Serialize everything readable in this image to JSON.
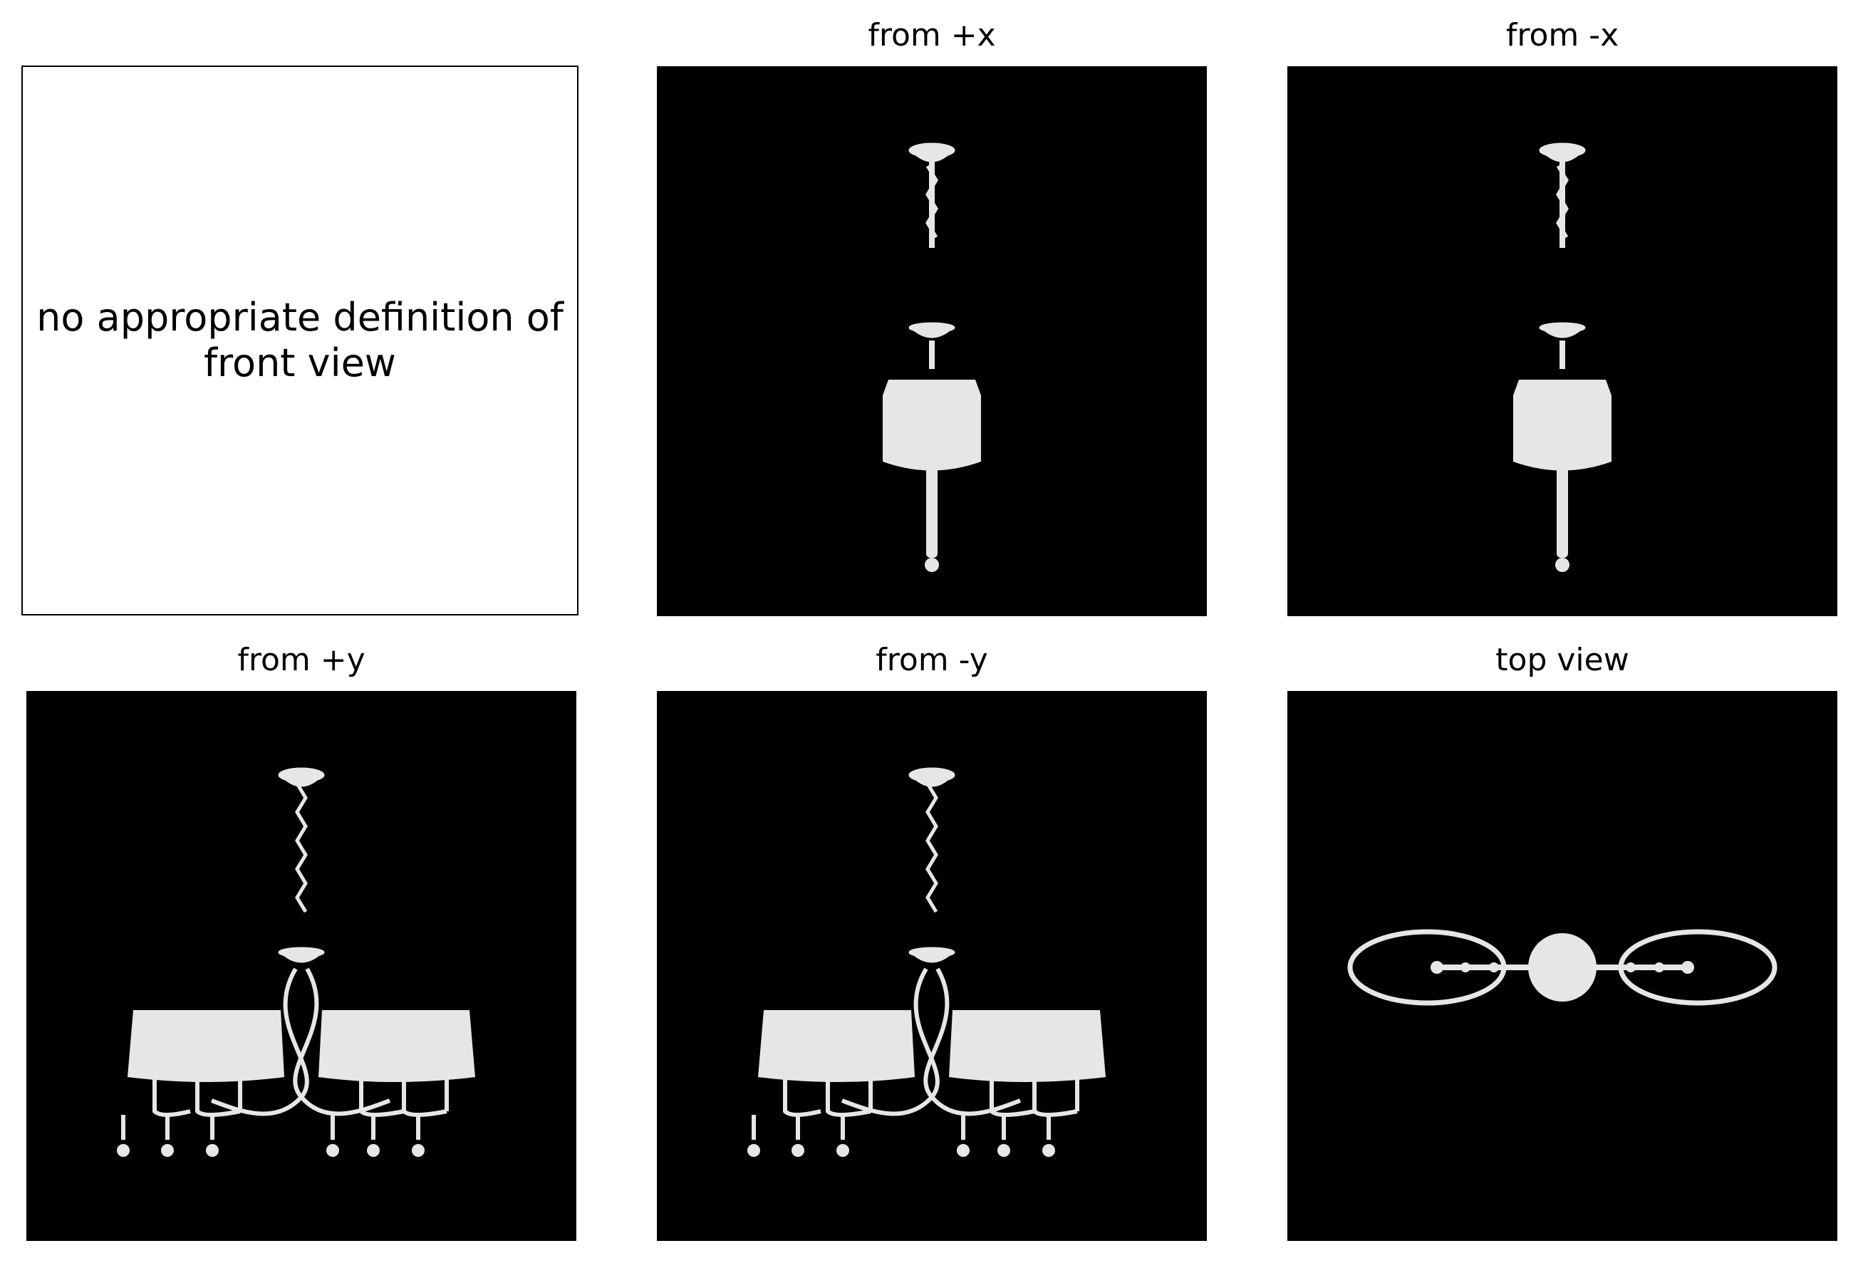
{
  "note": {
    "text": "no appropriate definition of front view"
  },
  "panels": {
    "plus_x": {
      "title": "from +x"
    },
    "minus_x": {
      "title": "from -x"
    },
    "plus_y": {
      "title": "from +y"
    },
    "minus_y": {
      "title": "from -y"
    },
    "top": {
      "title": "top view"
    }
  },
  "colors": {
    "background": "#000000",
    "object": "#e6e6e6",
    "page": "#ffffff"
  }
}
